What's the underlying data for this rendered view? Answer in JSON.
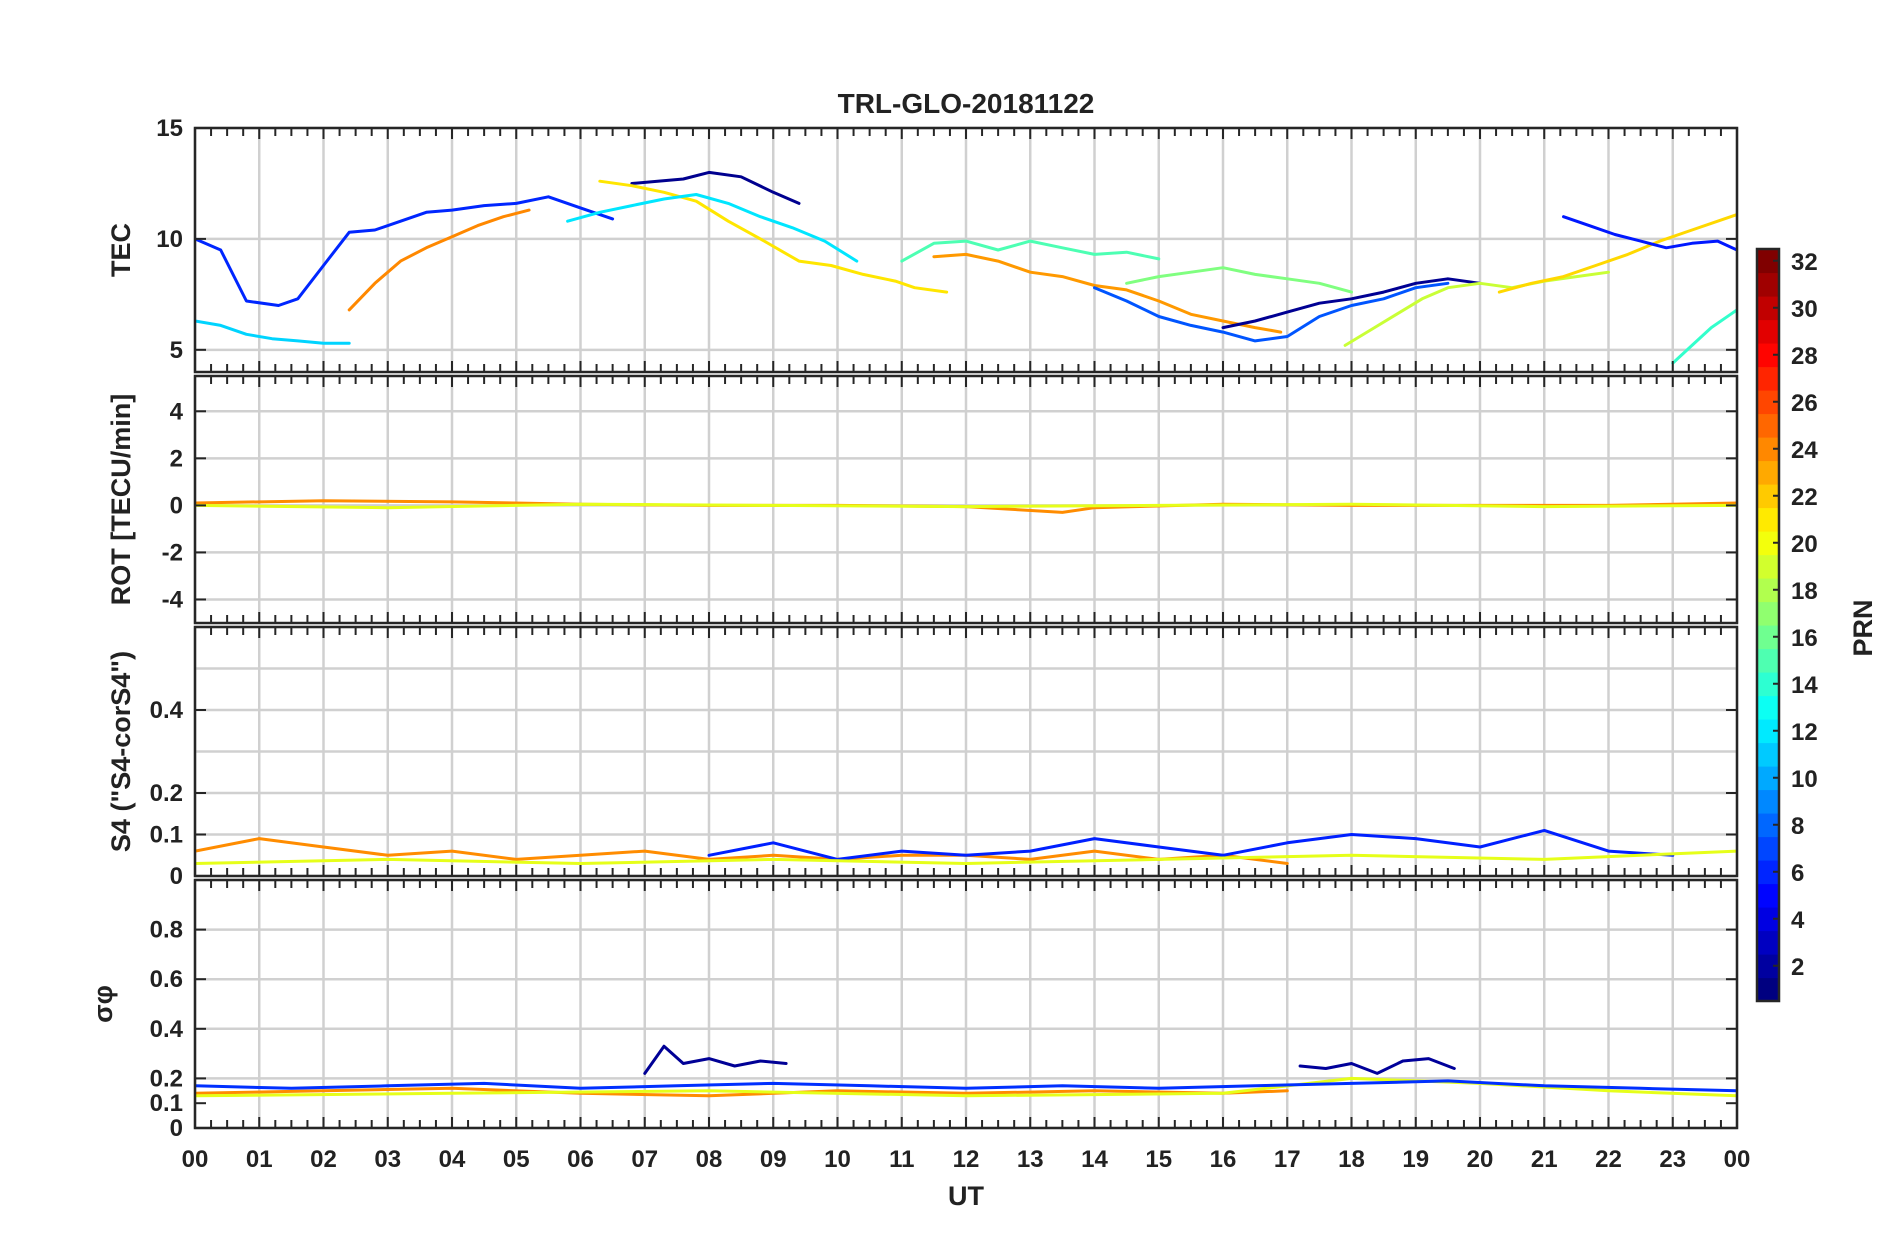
{
  "chart_data": {
    "type": "line",
    "title": "TRL-GLO-20181122",
    "xlabel": "UT",
    "x_tick_labels": [
      "00",
      "01",
      "02",
      "03",
      "04",
      "05",
      "06",
      "07",
      "08",
      "09",
      "10",
      "11",
      "12",
      "13",
      "14",
      "15",
      "16",
      "17",
      "18",
      "19",
      "20",
      "21",
      "22",
      "23",
      "00"
    ],
    "x_range_hours": [
      0,
      24
    ],
    "colorbar": {
      "label": "PRN",
      "range": [
        1,
        32
      ],
      "tick_labels": [
        "2",
        "4",
        "6",
        "8",
        "10",
        "12",
        "14",
        "16",
        "18",
        "20",
        "22",
        "24",
        "26",
        "28",
        "30",
        "32"
      ],
      "colormap": "jet"
    },
    "panels": [
      {
        "id": "tec",
        "ylabel": "TEC",
        "ylim": [
          4,
          15
        ],
        "y_tick_labels": [
          "5",
          "10",
          "15"
        ],
        "y_tick_values": [
          5,
          10,
          15
        ],
        "series": [
          {
            "prn": 3,
            "color": "#0026ff",
            "x": [
              0.0,
              0.4,
              0.8,
              1.3,
              1.6,
              2.0,
              2.4,
              2.8,
              3.2,
              3.6,
              4.0,
              4.5,
              5.0,
              5.5,
              6.0,
              6.5
            ],
            "y": [
              10.0,
              9.5,
              7.2,
              7.0,
              7.3,
              8.8,
              10.3,
              10.4,
              10.8,
              11.2,
              11.3,
              11.5,
              11.6,
              11.9,
              11.4,
              10.9
            ]
          },
          {
            "prn": 1,
            "color": "#00008f",
            "x": [
              6.8,
              7.2,
              7.6,
              8.0,
              8.5,
              9.0,
              9.4
            ],
            "y": [
              12.5,
              12.6,
              12.7,
              13.0,
              12.8,
              12.1,
              11.6
            ]
          },
          {
            "prn": 21,
            "color": "#ffe600",
            "x": [
              6.3,
              6.8,
              7.3,
              7.8,
              8.3,
              8.8,
              9.4,
              9.9,
              10.4,
              10.9,
              11.2,
              11.7
            ],
            "y": [
              12.6,
              12.4,
              12.1,
              11.7,
              10.8,
              10.0,
              9.0,
              8.8,
              8.4,
              8.1,
              7.8,
              7.6
            ]
          },
          {
            "prn": 15,
            "color": "#4dffb3",
            "x": [
              11.0,
              11.5,
              12.0,
              12.5,
              13.0,
              13.5,
              14.0,
              14.5,
              15.0
            ],
            "y": [
              9.0,
              9.8,
              9.9,
              9.5,
              9.9,
              9.6,
              9.3,
              9.4,
              9.1
            ]
          },
          {
            "prn": 23,
            "color": "#ff9900",
            "x": [
              11.5,
              12.0,
              12.5,
              13.0,
              13.5,
              14.0,
              14.5,
              15.0,
              15.5,
              16.0,
              16.5,
              16.9
            ],
            "y": [
              9.2,
              9.3,
              9.0,
              8.5,
              8.3,
              7.9,
              7.7,
              7.2,
              6.6,
              6.3,
              6.0,
              5.8
            ]
          },
          {
            "prn": 7,
            "color": "#0055ff",
            "x": [
              14.0,
              14.5,
              15.0,
              15.5,
              16.0,
              16.5,
              17.0,
              17.5,
              18.0,
              18.5,
              19.0,
              19.5
            ],
            "y": [
              7.8,
              7.2,
              6.5,
              6.1,
              5.8,
              5.4,
              5.6,
              6.5,
              7.0,
              7.3,
              7.8,
              8.0
            ]
          },
          {
            "prn": 1,
            "color": "#000093",
            "x": [
              16.0,
              16.5,
              17.0,
              17.5,
              18.0,
              18.5,
              19.0,
              19.5,
              20.0
            ],
            "y": [
              6.0,
              6.3,
              6.7,
              7.1,
              7.3,
              7.6,
              8.0,
              8.2,
              8.0
            ]
          },
          {
            "prn": 18,
            "color": "#c9ff36",
            "x": [
              17.9,
              18.3,
              18.7,
              19.1,
              19.5,
              20.0,
              20.5,
              21.0,
              21.5,
              22.0
            ],
            "y": [
              5.2,
              5.9,
              6.6,
              7.3,
              7.8,
              8.0,
              7.8,
              8.1,
              8.3,
              8.5
            ]
          },
          {
            "prn": 21,
            "color": "#ffd800",
            "x": [
              20.3,
              20.8,
              21.3,
              21.8,
              22.3,
              22.8,
              23.3,
              23.8,
              24.0
            ],
            "y": [
              7.6,
              8.0,
              8.3,
              8.8,
              9.3,
              9.9,
              10.4,
              10.9,
              11.1
            ]
          },
          {
            "prn": 4,
            "color": "#0018ff",
            "x": [
              21.3,
              21.7,
              22.1,
              22.5,
              22.9,
              23.3,
              23.7,
              24.0
            ],
            "y": [
              11.0,
              10.6,
              10.2,
              9.9,
              9.6,
              9.8,
              9.9,
              9.5
            ]
          },
          {
            "prn": 14,
            "color": "#33ffcc",
            "x": [
              23.0,
              23.3,
              23.6,
              23.9,
              24.0
            ],
            "y": [
              4.4,
              5.2,
              6.0,
              6.6,
              6.8
            ]
          },
          {
            "prn": 12,
            "color": "#00d4ff",
            "x": [
              0.0,
              0.4,
              0.8,
              1.2,
              1.6,
              2.0,
              2.4
            ],
            "y": [
              6.3,
              6.1,
              5.7,
              5.5,
              5.4,
              5.3,
              5.3
            ]
          },
          {
            "prn": 24,
            "color": "#ff8800",
            "x": [
              2.4,
              2.8,
              3.2,
              3.6,
              4.0,
              4.4,
              4.8,
              5.2
            ],
            "y": [
              6.8,
              8.0,
              9.0,
              9.6,
              10.1,
              10.6,
              11.0,
              11.3
            ]
          },
          {
            "prn": 13,
            "color": "#00e6ff",
            "x": [
              5.8,
              6.3,
              6.8,
              7.3,
              7.8,
              8.3,
              8.8,
              9.3,
              9.8,
              10.3
            ],
            "y": [
              10.8,
              11.2,
              11.5,
              11.8,
              12.0,
              11.6,
              11.0,
              10.5,
              9.9,
              9.0
            ]
          },
          {
            "prn": 16,
            "color": "#80ff80",
            "x": [
              14.5,
              15.0,
              15.5,
              16.0,
              16.5,
              17.0,
              17.5,
              18.0
            ],
            "y": [
              8.0,
              8.3,
              8.5,
              8.7,
              8.4,
              8.2,
              8.0,
              7.6
            ]
          }
        ]
      },
      {
        "id": "rot",
        "ylabel": "ROT [TECU/min]",
        "ylim": [
          -5,
          5.5
        ],
        "y_tick_labels": [
          "-4",
          "-2",
          "0",
          "2",
          "4"
        ],
        "y_tick_values": [
          -4,
          -2,
          0,
          2,
          4
        ],
        "series": [
          {
            "prn": 23,
            "color": "#ff8c00",
            "x": [
              0,
              2,
              4,
              6,
              8,
              10,
              12,
              13.5,
              14,
              16,
              18,
              20,
              22,
              24
            ],
            "y": [
              0.1,
              0.2,
              0.15,
              0.05,
              0.0,
              0.0,
              -0.05,
              -0.3,
              -0.1,
              0.05,
              0.0,
              0.0,
              0.0,
              0.1
            ]
          },
          {
            "prn": 19,
            "color": "#e6ff1a",
            "x": [
              0,
              3,
              6,
              9,
              12,
              15,
              18,
              21,
              24
            ],
            "y": [
              0.0,
              -0.1,
              0.05,
              0.0,
              -0.05,
              0.0,
              0.05,
              -0.05,
              0.0
            ]
          }
        ]
      },
      {
        "id": "s4",
        "ylabel": "S4 (\"S4-corS4\")",
        "ylim": [
          0,
          0.6
        ],
        "y_tick_labels": [
          "0",
          "0.1",
          "0.2",
          "0.4"
        ],
        "y_tick_values": [
          0,
          0.1,
          0.2,
          0.4
        ],
        "series": [
          {
            "prn": 23,
            "color": "#ff8c00",
            "x": [
              0,
              1,
              2,
              3,
              4,
              5,
              6,
              7,
              8,
              9,
              10,
              11,
              12,
              13,
              14,
              15,
              16,
              17
            ],
            "y": [
              0.06,
              0.09,
              0.07,
              0.05,
              0.06,
              0.04,
              0.05,
              0.06,
              0.04,
              0.05,
              0.04,
              0.05,
              0.05,
              0.04,
              0.06,
              0.04,
              0.05,
              0.03
            ]
          },
          {
            "prn": 3,
            "color": "#0020ff",
            "x": [
              8,
              9,
              10,
              11,
              12,
              13,
              14,
              15,
              16,
              17,
              18,
              19,
              20,
              21,
              22,
              23
            ],
            "y": [
              0.05,
              0.08,
              0.04,
              0.06,
              0.05,
              0.06,
              0.09,
              0.07,
              0.05,
              0.08,
              0.1,
              0.09,
              0.07,
              0.11,
              0.06,
              0.05
            ]
          },
          {
            "prn": 19,
            "color": "#e6ff1a",
            "x": [
              0,
              3,
              6,
              9,
              12,
              15,
              18,
              21,
              24
            ],
            "y": [
              0.03,
              0.04,
              0.03,
              0.04,
              0.03,
              0.04,
              0.05,
              0.04,
              0.06
            ]
          }
        ]
      },
      {
        "id": "sigma_phi",
        "ylabel": "σφ",
        "ylim": [
          0,
          1
        ],
        "y_tick_labels": [
          "0",
          "0.1",
          "0.2",
          "0.4",
          "0.6",
          "0.8"
        ],
        "y_tick_values": [
          0,
          0.1,
          0.2,
          0.4,
          0.6,
          0.8
        ],
        "series": [
          {
            "prn": 1,
            "color": "#000096",
            "x": [
              7.0,
              7.3,
              7.6,
              8.0,
              8.4,
              8.8,
              9.2
            ],
            "y": [
              0.22,
              0.33,
              0.26,
              0.28,
              0.25,
              0.27,
              0.26
            ]
          },
          {
            "prn": 1,
            "color": "#00009a",
            "x": [
              17.2,
              17.6,
              18.0,
              18.4,
              18.8,
              19.2,
              19.6
            ],
            "y": [
              0.25,
              0.24,
              0.26,
              0.22,
              0.27,
              0.28,
              0.24
            ]
          },
          {
            "prn": 23,
            "color": "#ff8c00",
            "x": [
              0,
              2,
              4,
              6,
              8,
              10,
              12,
              14,
              16,
              17
            ],
            "y": [
              0.14,
              0.15,
              0.16,
              0.14,
              0.13,
              0.15,
              0.14,
              0.15,
              0.14,
              0.15
            ]
          },
          {
            "prn": 19,
            "color": "#e6ff1a",
            "x": [
              0,
              4,
              8,
              12,
              16,
              18,
              20,
              22,
              24
            ],
            "y": [
              0.13,
              0.14,
              0.15,
              0.13,
              0.14,
              0.2,
              0.18,
              0.15,
              0.13
            ]
          },
          {
            "prn": 4,
            "color": "#0030ff",
            "x": [
              0,
              1.5,
              3,
              4.5,
              6,
              7.5,
              9,
              10.5,
              12,
              13.5,
              15,
              16.5,
              18,
              19.5,
              21,
              22.5,
              24
            ],
            "y": [
              0.17,
              0.16,
              0.17,
              0.18,
              0.16,
              0.17,
              0.18,
              0.17,
              0.16,
              0.17,
              0.16,
              0.17,
              0.18,
              0.19,
              0.17,
              0.16,
              0.15
            ]
          }
        ]
      }
    ]
  }
}
